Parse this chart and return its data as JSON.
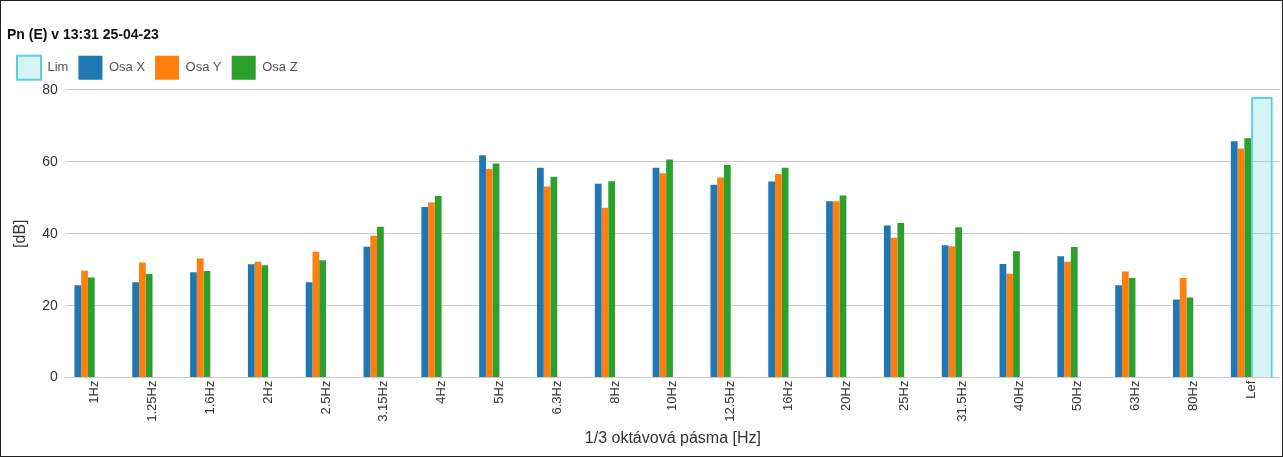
{
  "chart_data": {
    "type": "bar",
    "title": "Pn (E) v 13:31 25-04-23",
    "xlabel": "1/3 oktávová pásma [Hz]",
    "ylabel": "[dB]",
    "categories": [
      "1Hz",
      "1.25Hz",
      "1.6Hz",
      "2Hz",
      "2.5Hz",
      "3.15Hz",
      "4Hz",
      "5Hz",
      "6.3Hz",
      "8Hz",
      "10Hz",
      "12.5Hz",
      "16Hz",
      "20Hz",
      "25Hz",
      "31.5Hz",
      "40Hz",
      "50Hz",
      "63Hz",
      "80Hz",
      "Lef"
    ],
    "series": [
      {
        "name": "Osa X",
        "color": "#1f77b4",
        "values": [
          25.7,
          26.5,
          29.3,
          31.5,
          26.5,
          36.4,
          47.4,
          61.8,
          58.3,
          53.9,
          58.3,
          53.6,
          54.5,
          49.0,
          42.3,
          36.8,
          31.6,
          33.7,
          25.7,
          21.7,
          65.7
        ]
      },
      {
        "name": "Osa Y",
        "color": "#ff7f0e",
        "values": [
          29.7,
          32.0,
          33.1,
          32.2,
          35.0,
          39.4,
          48.7,
          58.0,
          53.1,
          47.2,
          56.8,
          55.6,
          56.6,
          49.0,
          38.9,
          36.5,
          28.9,
          32.2,
          29.5,
          27.7,
          63.7
        ]
      },
      {
        "name": "Osa Z",
        "color": "#2ca02c",
        "values": [
          27.8,
          28.8,
          29.6,
          31.2,
          32.6,
          41.9,
          50.5,
          59.5,
          55.8,
          54.6,
          60.6,
          59.1,
          58.3,
          50.6,
          43.0,
          41.8,
          35.1,
          36.3,
          27.7,
          22.3,
          66.5
        ]
      },
      {
        "name": "Lim",
        "color": "#5ad2dd",
        "values": [
          null,
          null,
          null,
          null,
          null,
          null,
          null,
          null,
          null,
          null,
          null,
          null,
          null,
          null,
          null,
          null,
          null,
          null,
          null,
          null,
          78
        ]
      }
    ],
    "ylim": [
      0,
      80
    ],
    "yticks": [
      0,
      20,
      40,
      60,
      80
    ],
    "grid": "y",
    "legend": "top left"
  }
}
